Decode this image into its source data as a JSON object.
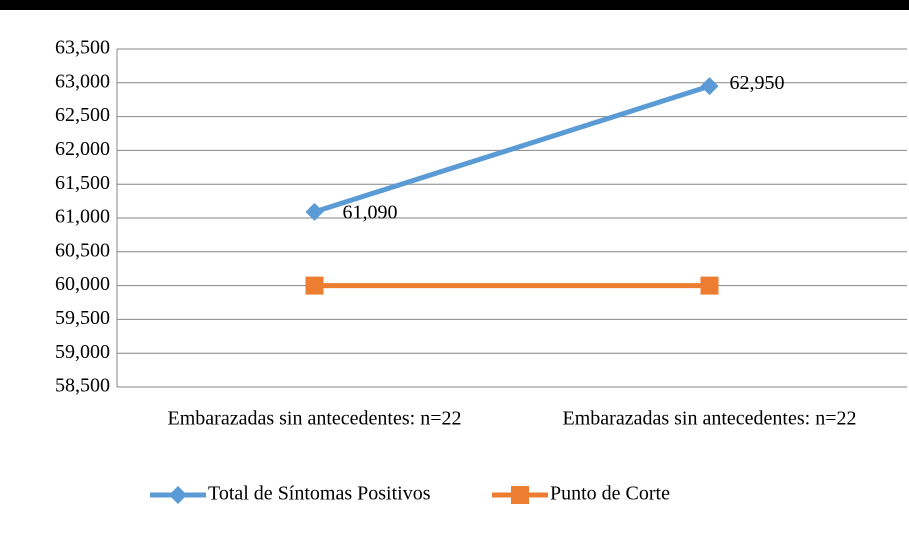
{
  "chart_data": {
    "type": "line",
    "categories": [
      "Embarazadas sin antecedentes: n=22",
      "Embarazadas sin antecedentes: n=22"
    ],
    "series": [
      {
        "name": "Total de Síntomas Positivos",
        "color": "#5b9bd5",
        "marker": "diamond",
        "values": [
          61.09,
          62.95
        ],
        "value_labels": [
          "61,090",
          "62,950"
        ]
      },
      {
        "name": "Punto de Corte",
        "color": "#ed7d31",
        "marker": "square",
        "values": [
          60,
          60
        ]
      }
    ],
    "ylim": [
      58.5,
      63.5
    ],
    "yticks": [
      {
        "value": 58.5,
        "label": "58,500"
      },
      {
        "value": 59,
        "label": "59,000"
      },
      {
        "value": 59.5,
        "label": "59,500"
      },
      {
        "value": 60,
        "label": "60,000"
      },
      {
        "value": 60.5,
        "label": "60,500"
      },
      {
        "value": 61,
        "label": "61,000"
      },
      {
        "value": 61.5,
        "label": "61,500"
      },
      {
        "value": 62,
        "label": "62,000"
      },
      {
        "value": 62.5,
        "label": "62,500"
      },
      {
        "value": 63,
        "label": "63,000"
      },
      {
        "value": 63.5,
        "label": "63,500"
      }
    ],
    "grid": true,
    "legend": "bottom"
  }
}
